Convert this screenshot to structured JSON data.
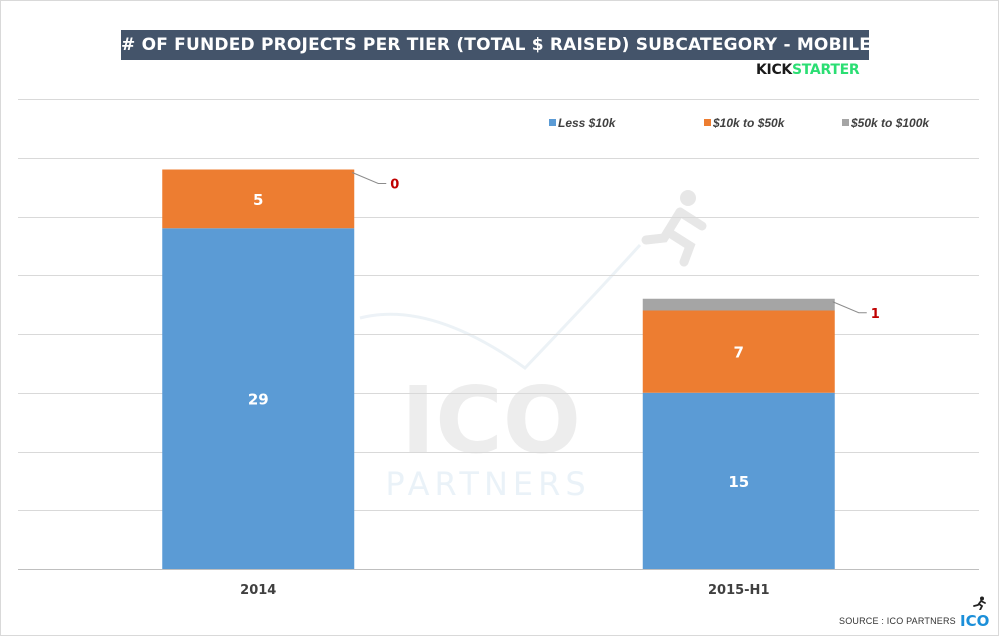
{
  "header": {
    "title": "# OF FUNDED PROJECTS PER TIER (TOTAL $ RAISED) SUBCATEGORY - MOBILE GAMES",
    "brand_part1": "KICK",
    "brand_part2": "STARTER"
  },
  "footer": {
    "source": "SOURCE : ICO PARTNERS",
    "logo_text": "ICO"
  },
  "watermark": {
    "line1": "ICO",
    "line2": "PARTNERS"
  },
  "colors": {
    "less_10k": "#5b9bd5",
    "k10_50": "#ed7d31",
    "k50_100": "#a5a5a5",
    "title_bg": "#44546a",
    "callout_text": "#c00000"
  },
  "chart_data": {
    "type": "bar",
    "stacked": true,
    "categories": [
      "2014",
      "2015-H1"
    ],
    "series": [
      {
        "name": "Less $10k",
        "values": [
          29,
          15
        ],
        "color": "#5b9bd5"
      },
      {
        "name": "$10k to $50k",
        "values": [
          5,
          7
        ],
        "color": "#ed7d31"
      },
      {
        "name": "$50k to $100k",
        "values": [
          0,
          1
        ],
        "color": "#a5a5a5"
      }
    ],
    "ylim": [
      0,
      40
    ],
    "grid": true,
    "legend": "top-right",
    "callouts": [
      {
        "category": "2014",
        "series": "$50k to $100k",
        "label": "0"
      },
      {
        "category": "2015-H1",
        "series": "$50k to $100k",
        "label": "1"
      }
    ]
  }
}
